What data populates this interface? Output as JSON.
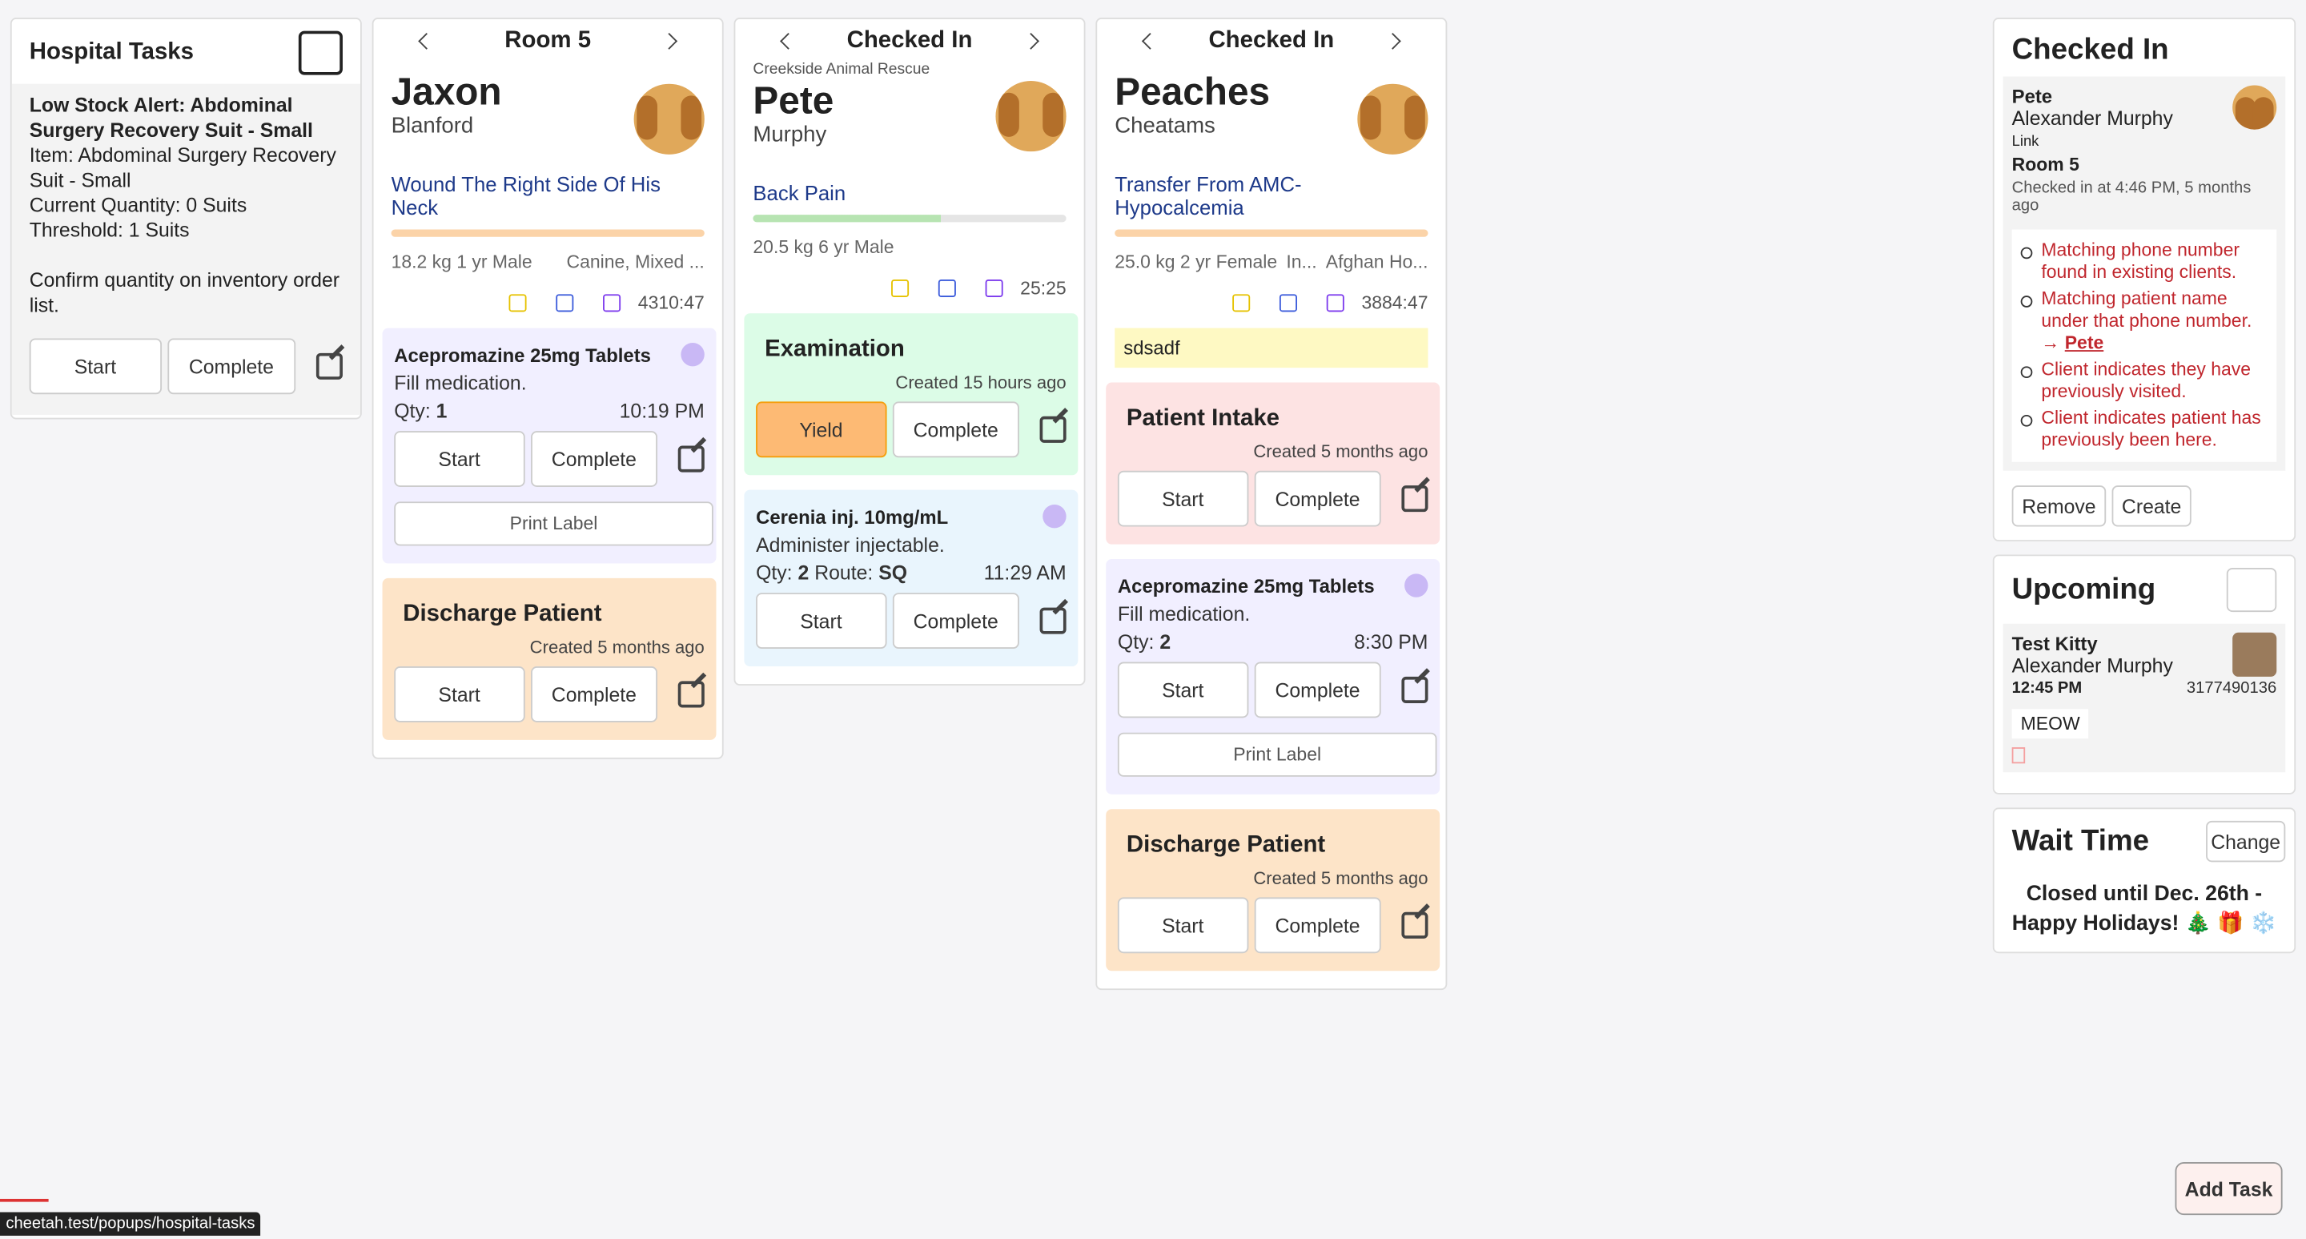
{
  "hospital_tasks": {
    "title": "Hospital Tasks",
    "alert_title": "Low Stock Alert: Abdominal Surgery Recovery Suit - Small",
    "lines": [
      "Item: Abdominal Surgery Recovery Suit - Small",
      "Current Quantity: 0 Suits",
      "Threshold: 1 Suits"
    ],
    "note": "Confirm quantity on inventory order list.",
    "buttons": [
      "Start",
      "Complete"
    ]
  },
  "columns": [
    {
      "header": "Room 5",
      "name": "Jaxon",
      "last": "Blanford",
      "complaint": "Wound The Right Side Of His Neck",
      "info": [
        "18.2 kg 1 yr Male",
        "Canine, Mixed ..."
      ],
      "timer": "4310:47",
      "cards": [
        {
          "kind": "med",
          "title": "Acepromazine 25mg Tablets",
          "desc": "Fill medication.",
          "qty_label": "Qty:",
          "qty": 1,
          "time": "10:19 PM",
          "buttons": [
            "Start",
            "Complete"
          ],
          "print": "Print Label"
        },
        {
          "kind": "task",
          "title": "Discharge Patient",
          "created": "Created 5 months ago",
          "buttons": [
            "Start",
            "Complete"
          ]
        }
      ]
    },
    {
      "header": "Checked In",
      "org": "Creekside Animal Rescue",
      "name": "Pete",
      "last": "Murphy",
      "complaint": "Back Pain",
      "info": [
        "20.5 kg 6 yr Male"
      ],
      "timer": "25:25",
      "cards": [
        {
          "kind": "task",
          "title": "Examination",
          "created": "Created 15 hours ago",
          "buttons": [
            "Yield",
            "Complete"
          ]
        },
        {
          "kind": "med",
          "title": "Cerenia inj. 10mg/mL",
          "desc": "Administer injectable.",
          "qty_label": "Qty:",
          "qty": 2,
          "route_label": "Route:",
          "route": "SQ",
          "time": "11:29 AM",
          "buttons": [
            "Start",
            "Complete"
          ]
        }
      ]
    },
    {
      "header": "Checked In",
      "name": "Peaches",
      "last": "Cheatams",
      "complaint": "Transfer From AMC-Hypocalcemia",
      "info": [
        "25.0 kg 2 yr Female",
        "In...",
        "Afghan Ho..."
      ],
      "timer": "3884:47",
      "note": "sdsadf",
      "cards": [
        {
          "kind": "task",
          "title": "Patient Intake",
          "created": "Created 5 months ago",
          "buttons": [
            "Start",
            "Complete"
          ]
        },
        {
          "kind": "med",
          "title": "Acepromazine 25mg Tablets",
          "desc": "Fill medication.",
          "qty_label": "Qty:",
          "qty": 2,
          "time": "8:30 PM",
          "buttons": [
            "Start",
            "Complete"
          ],
          "print": "Print Label"
        },
        {
          "kind": "task",
          "title": "Discharge Patient",
          "created": "Created 5 months ago",
          "buttons": [
            "Start",
            "Complete"
          ]
        }
      ]
    }
  ],
  "checked_in": {
    "title": "Checked In",
    "patient": "Pete",
    "client": "Alexander Murphy",
    "link": "Link",
    "room": "Room 5",
    "checked_at": "Checked in at 4:46 PM, 5 months ago",
    "warnings": [
      "Matching phone number found in existing clients.",
      "Matching patient name under that phone number. →",
      "Client indicates they have previously visited.",
      "Client indicates patient has previously been here."
    ],
    "warning_link": "Pete",
    "buttons": [
      "Remove",
      "Create"
    ]
  },
  "upcoming": {
    "title": "Upcoming",
    "patient": "Test Kitty",
    "client": "Alexander Murphy",
    "time": "12:45 PM",
    "phone": "3177490136",
    "tag": "MEOW"
  },
  "wait_time": {
    "title": "Wait Time",
    "button": "Change",
    "message": "Closed until Dec. 26th - Happy Holidays! 🎄 🎁 ❄️"
  },
  "add_task": "Add Task",
  "status_url": "cheetah.test/popups/hospital-tasks"
}
